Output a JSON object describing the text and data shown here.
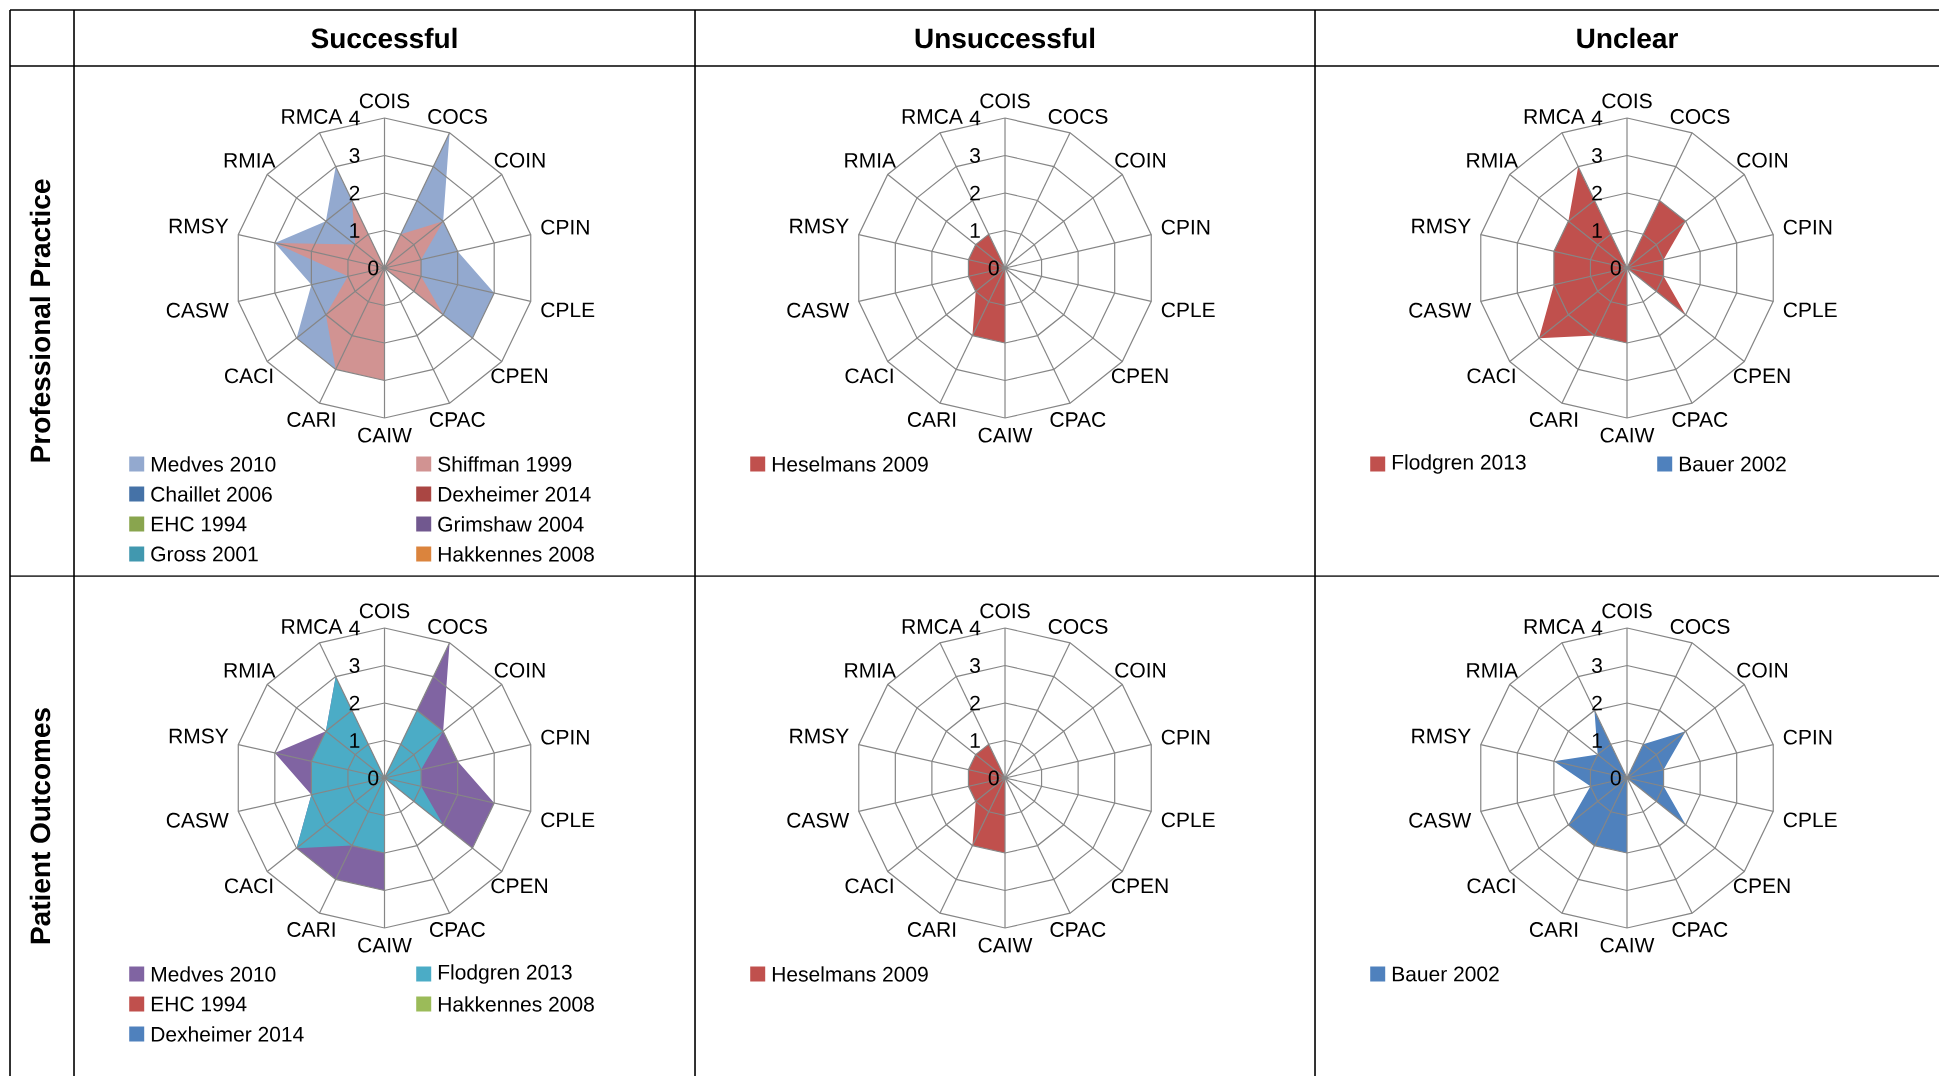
{
  "chart_data": [
    {
      "type": "radar",
      "title": "Successful",
      "ylabel": "Professional Practice",
      "categories": [
        "COIS",
        "COCS",
        "COIN",
        "CPIN",
        "CPLE",
        "CPEN",
        "CPAC",
        "CAIW",
        "CARI",
        "CACI",
        "CASW",
        "RMSY",
        "RMIA",
        "RMCA"
      ],
      "ylim": [
        0,
        4
      ],
      "yticks": [
        0,
        1,
        2,
        3,
        4
      ],
      "grid": true,
      "legend": "bottom",
      "series": [
        {
          "name": "Medves 2010",
          "color": "#93a9cf",
          "values": [
            0,
            4,
            2,
            2,
            3,
            3,
            0,
            null,
            3,
            3,
            2,
            3,
            2,
            3
          ]
        },
        {
          "name": "Shiffman 1999",
          "color": "#d19392",
          "values": [
            0,
            1,
            2,
            1,
            1,
            2,
            0,
            3,
            3,
            2,
            1,
            3,
            1,
            2
          ]
        },
        {
          "name": "Chaillet 2006",
          "color": "#4572a7",
          "values": [
            null,
            null,
            null,
            null,
            null,
            null,
            null,
            null,
            null,
            null,
            null,
            null,
            null,
            null
          ]
        },
        {
          "name": "Dexheimer 2014",
          "color": "#aa4643",
          "values": [
            null,
            null,
            null,
            null,
            null,
            null,
            null,
            null,
            null,
            null,
            null,
            null,
            null,
            null
          ]
        },
        {
          "name": "EHC 1994",
          "color": "#89a54e",
          "values": [
            null,
            null,
            null,
            null,
            null,
            null,
            null,
            null,
            null,
            null,
            null,
            null,
            null,
            null
          ]
        },
        {
          "name": "Grimshaw 2004",
          "color": "#71588f",
          "values": [
            null,
            null,
            null,
            null,
            null,
            null,
            null,
            null,
            null,
            null,
            null,
            null,
            null,
            null
          ]
        },
        {
          "name": "Gross 2001",
          "color": "#4198af",
          "values": [
            null,
            null,
            null,
            null,
            null,
            null,
            null,
            null,
            null,
            null,
            null,
            null,
            null,
            null
          ]
        },
        {
          "name": "Hakkennes 2008",
          "color": "#db843d",
          "values": [
            null,
            null,
            null,
            null,
            null,
            null,
            null,
            null,
            null,
            null,
            null,
            null,
            null,
            null
          ]
        }
      ]
    },
    {
      "type": "radar",
      "title": "Unsuccessful",
      "categories": [
        "COIS",
        "COCS",
        "COIN",
        "CPIN",
        "CPLE",
        "CPEN",
        "CPAC",
        "CAIW",
        "CARI",
        "CACI",
        "CASW",
        "RMSY",
        "RMIA",
        "RMCA"
      ],
      "ylim": [
        0,
        4
      ],
      "yticks": [
        0,
        1,
        2,
        3,
        4
      ],
      "grid": true,
      "legend": "bottom",
      "series": [
        {
          "name": "Heselmans 2009",
          "color": "#c0504d",
          "values": [
            0,
            0,
            0,
            0,
            0,
            0,
            0,
            2,
            2,
            1,
            1,
            1,
            1,
            1
          ]
        }
      ]
    },
    {
      "type": "radar",
      "title": "Unclear",
      "categories": [
        "COIS",
        "COCS",
        "COIN",
        "CPIN",
        "CPLE",
        "CPEN",
        "CPAC",
        "CAIW",
        "CARI",
        "CACI",
        "CASW",
        "RMSY",
        "RMIA",
        "RMCA"
      ],
      "ylim": [
        0,
        4
      ],
      "yticks": [
        0,
        1,
        2,
        3,
        4
      ],
      "grid": true,
      "legend": "bottom",
      "series": [
        {
          "name": "Flodgren 2013",
          "color": "#c0504d",
          "values": [
            0,
            2,
            2,
            1,
            1,
            2,
            0,
            2,
            2,
            3,
            2,
            2,
            2,
            3
          ]
        },
        {
          "name": "Bauer 2002",
          "color": "#4f81bd",
          "values": [
            null,
            null,
            null,
            null,
            null,
            null,
            null,
            null,
            null,
            null,
            null,
            null,
            null,
            null
          ]
        }
      ]
    },
    {
      "type": "radar",
      "ylabel": "Patient Outcomes",
      "categories": [
        "COIS",
        "COCS",
        "COIN",
        "CPIN",
        "CPLE",
        "CPEN",
        "CPAC",
        "CAIW",
        "CARI",
        "CACI",
        "CASW",
        "RMSY",
        "RMIA",
        "RMCA"
      ],
      "ylim": [
        0,
        4
      ],
      "yticks": [
        0,
        1,
        2,
        3,
        4
      ],
      "grid": true,
      "legend": "bottom",
      "series": [
        {
          "name": "Medves 2010",
          "color": "#8064a2",
          "values": [
            0,
            4,
            2,
            2,
            3,
            3,
            0,
            3,
            3,
            3,
            2,
            3,
            2,
            3
          ]
        },
        {
          "name": "Flodgren 2013",
          "color": "#4bacc6",
          "values": [
            0,
            2,
            2,
            1,
            1,
            2,
            0,
            2,
            2,
            3,
            2,
            2,
            2,
            3
          ]
        },
        {
          "name": "EHC 1994",
          "color": "#c0504d",
          "values": [
            null,
            null,
            null,
            null,
            null,
            null,
            null,
            null,
            null,
            null,
            null,
            null,
            null,
            null
          ]
        },
        {
          "name": "Hakkennes 2008",
          "color": "#9bbb59",
          "values": [
            null,
            null,
            null,
            null,
            null,
            null,
            null,
            null,
            null,
            null,
            null,
            null,
            null,
            null
          ]
        },
        {
          "name": "Dexheimer 2014",
          "color": "#4f81bd",
          "values": [
            null,
            null,
            null,
            null,
            null,
            null,
            null,
            null,
            null,
            null,
            null,
            null,
            null,
            null
          ]
        }
      ]
    },
    {
      "type": "radar",
      "categories": [
        "COIS",
        "COCS",
        "COIN",
        "CPIN",
        "CPLE",
        "CPEN",
        "CPAC",
        "CAIW",
        "CARI",
        "CACI",
        "CASW",
        "RMSY",
        "RMIA",
        "RMCA"
      ],
      "ylim": [
        0,
        4
      ],
      "yticks": [
        0,
        1,
        2,
        3,
        4
      ],
      "grid": true,
      "legend": "bottom",
      "series": [
        {
          "name": "Heselmans 2009",
          "color": "#c0504d",
          "values": [
            0,
            0,
            0,
            0,
            0,
            0,
            0,
            2,
            2,
            1,
            1,
            1,
            1,
            1
          ]
        }
      ]
    },
    {
      "type": "radar",
      "categories": [
        "COIS",
        "COCS",
        "COIN",
        "CPIN",
        "CPLE",
        "CPEN",
        "CPAC",
        "CAIW",
        "CARI",
        "CACI",
        "CASW",
        "RMSY",
        "RMIA",
        "RMCA"
      ],
      "ylim": [
        0,
        4
      ],
      "yticks": [
        0,
        1,
        2,
        3,
        4
      ],
      "grid": true,
      "legend": "bottom",
      "series": [
        {
          "name": "Bauer 2002",
          "color": "#4f81bd",
          "values": [
            0,
            1,
            2,
            1,
            1,
            2,
            0,
            2,
            2,
            2,
            1,
            2,
            1,
            2
          ]
        }
      ]
    }
  ]
}
